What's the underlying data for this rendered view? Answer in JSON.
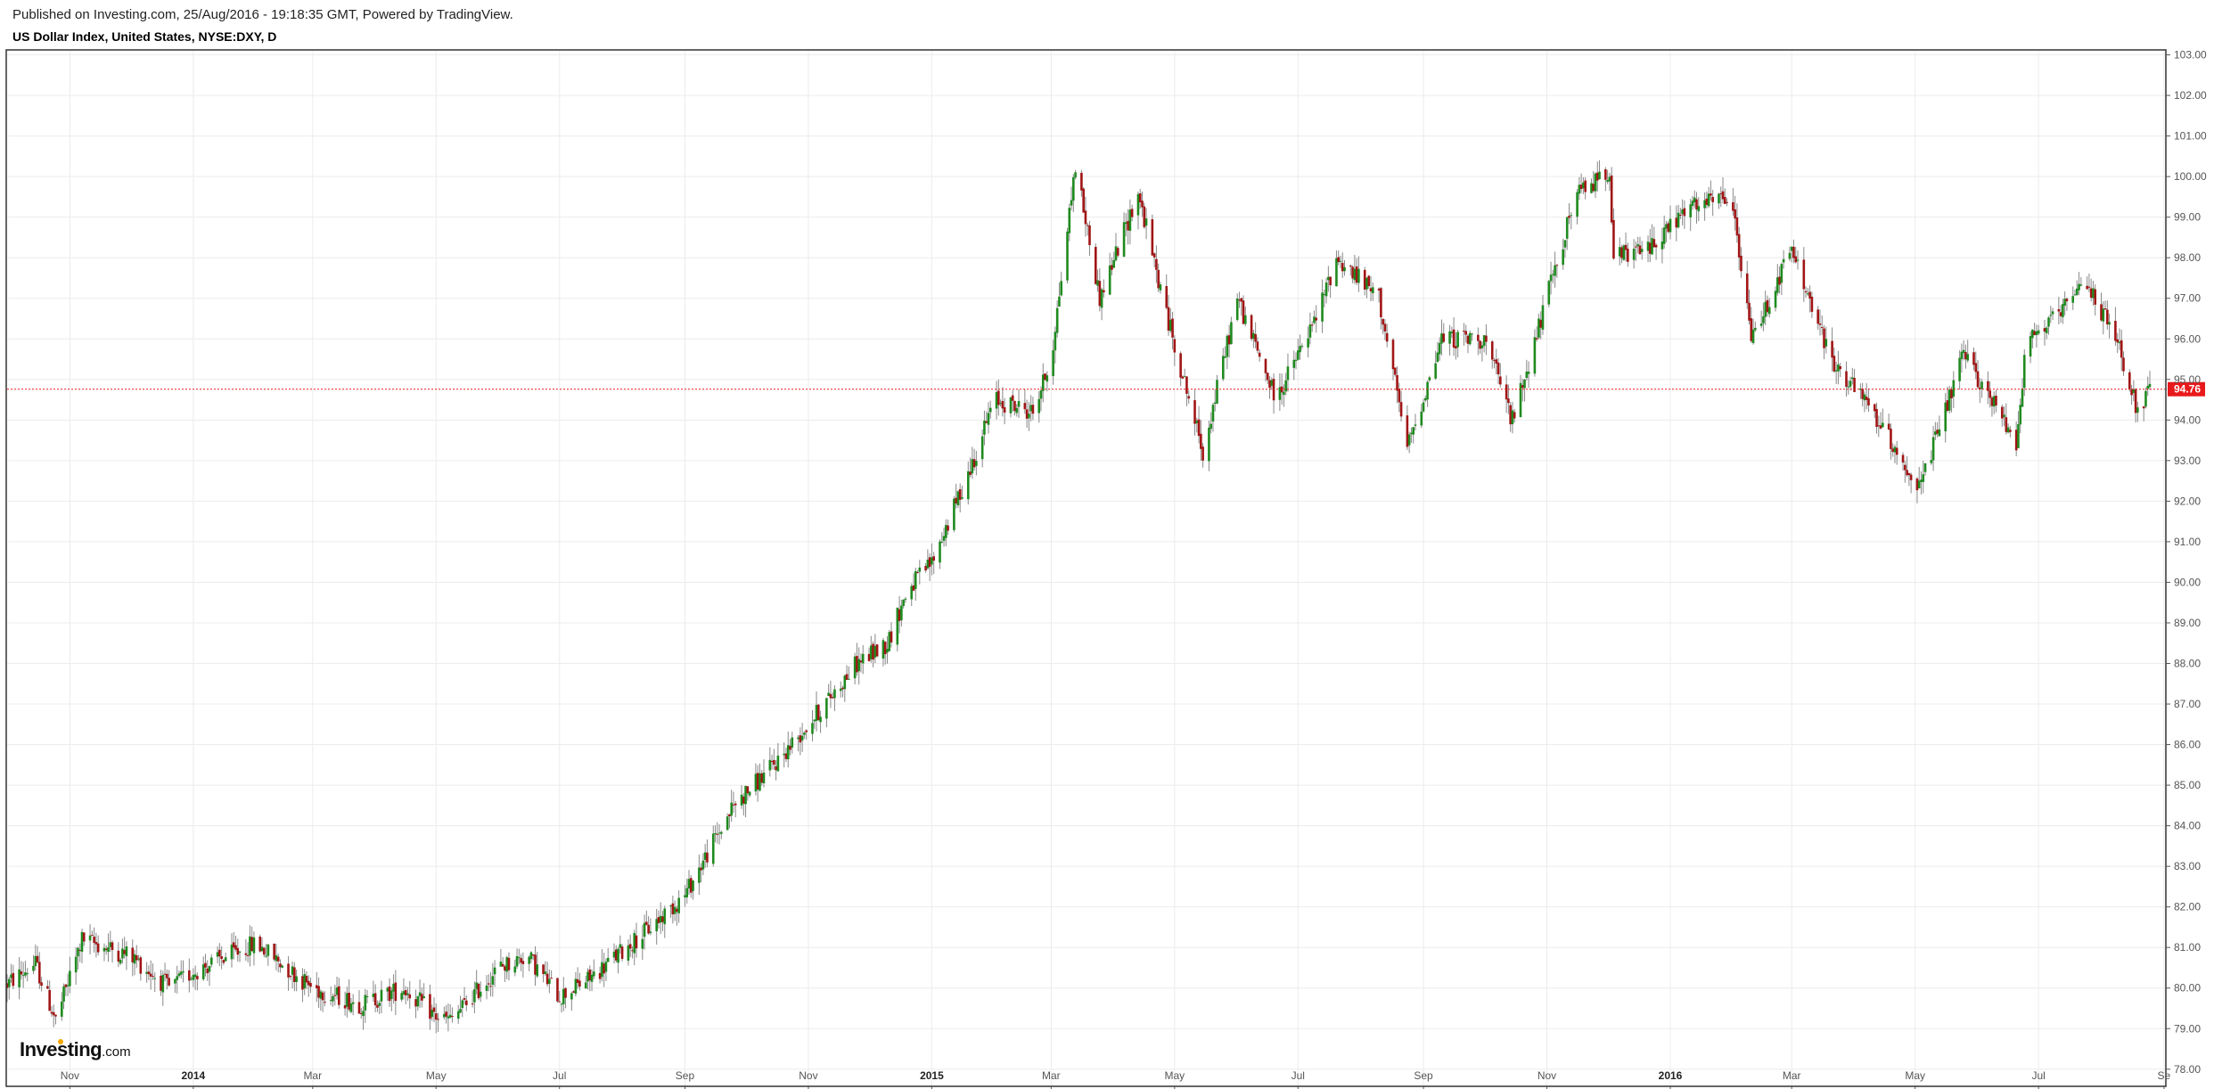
{
  "header": {
    "published": "Published on Investing.com, 25/Aug/2016 - 19:18:35 GMT, Powered by TradingView.",
    "title": "US Dollar Index, United States, NYSE:DXY, D"
  },
  "logo": {
    "brand": "Investing",
    "suffix": ".com"
  },
  "colors": {
    "up": "#1f8a1f",
    "down": "#a11515",
    "wick": "#888888",
    "grid": "#ececec",
    "frame": "#333333",
    "last_price": "#e8191c"
  },
  "chart_data": {
    "type": "candlestick",
    "title": "US Dollar Index, United States, NYSE:DXY, D",
    "ylim": [
      77.6,
      103.1
    ],
    "y_ticks": [
      "78.00",
      "79.00",
      "80.00",
      "81.00",
      "82.00",
      "83.00",
      "84.00",
      "85.00",
      "86.00",
      "87.00",
      "88.00",
      "89.00",
      "90.00",
      "91.00",
      "92.00",
      "93.00",
      "94.00",
      "95.00",
      "96.00",
      "97.00",
      "98.00",
      "99.00",
      "100.00",
      "101.00",
      "102.00",
      "103.00"
    ],
    "x_ticks": [
      {
        "label": "Nov",
        "bold": false
      },
      {
        "label": "2014",
        "bold": true
      },
      {
        "label": "Mar",
        "bold": false
      },
      {
        "label": "May",
        "bold": false
      },
      {
        "label": "Jul",
        "bold": false
      },
      {
        "label": "Sep",
        "bold": false
      },
      {
        "label": "Nov",
        "bold": false
      },
      {
        "label": "2015",
        "bold": true
      },
      {
        "label": "Mar",
        "bold": false
      },
      {
        "label": "May",
        "bold": false
      },
      {
        "label": "Jul",
        "bold": false
      },
      {
        "label": "Sep",
        "bold": false
      },
      {
        "label": "Nov",
        "bold": false
      },
      {
        "label": "2016",
        "bold": true
      },
      {
        "label": "Mar",
        "bold": false
      },
      {
        "label": "May",
        "bold": false
      },
      {
        "label": "Jul",
        "bold": false
      },
      {
        "label": "Se",
        "bold": false
      }
    ],
    "last_price": 94.76,
    "last_price_label": "94.76",
    "grid": true,
    "path_anchors": [
      {
        "x": "2013-10-01",
        "y": 80.1
      },
      {
        "x": "2013-10-15",
        "y": 80.6
      },
      {
        "x": "2013-10-25",
        "y": 79.2
      },
      {
        "x": "2013-11-07",
        "y": 81.2
      },
      {
        "x": "2013-12-01",
        "y": 80.8
      },
      {
        "x": "2013-12-20",
        "y": 80.0
      },
      {
        "x": "2014-01-01",
        "y": 80.4
      },
      {
        "x": "2014-02-01",
        "y": 81.1
      },
      {
        "x": "2014-03-01",
        "y": 80.0
      },
      {
        "x": "2014-03-25",
        "y": 79.6
      },
      {
        "x": "2014-04-15",
        "y": 80.0
      },
      {
        "x": "2014-05-01",
        "y": 79.3
      },
      {
        "x": "2014-05-08",
        "y": 79.2
      },
      {
        "x": "2014-06-01",
        "y": 80.5
      },
      {
        "x": "2014-06-15",
        "y": 80.8
      },
      {
        "x": "2014-07-01",
        "y": 79.8
      },
      {
        "x": "2014-07-15",
        "y": 80.2
      },
      {
        "x": "2014-08-15",
        "y": 81.5
      },
      {
        "x": "2014-09-01",
        "y": 82.3
      },
      {
        "x": "2014-09-25",
        "y": 84.5
      },
      {
        "x": "2014-10-15",
        "y": 85.5
      },
      {
        "x": "2014-11-01",
        "y": 86.5
      },
      {
        "x": "2014-11-25",
        "y": 88.0
      },
      {
        "x": "2014-12-10",
        "y": 88.5
      },
      {
        "x": "2014-12-20",
        "y": 89.8
      },
      {
        "x": "2015-01-01",
        "y": 90.5
      },
      {
        "x": "2015-01-20",
        "y": 92.8
      },
      {
        "x": "2015-02-01",
        "y": 94.5
      },
      {
        "x": "2015-02-20",
        "y": 94.2
      },
      {
        "x": "2015-03-01",
        "y": 95.5
      },
      {
        "x": "2015-03-13",
        "y": 100.3
      },
      {
        "x": "2015-03-25",
        "y": 97.0
      },
      {
        "x": "2015-04-13",
        "y": 99.6
      },
      {
        "x": "2015-04-25",
        "y": 97.0
      },
      {
        "x": "2015-05-15",
        "y": 93.2
      },
      {
        "x": "2015-06-01",
        "y": 97.0
      },
      {
        "x": "2015-06-20",
        "y": 94.5
      },
      {
        "x": "2015-07-10",
        "y": 96.5
      },
      {
        "x": "2015-07-20",
        "y": 98.0
      },
      {
        "x": "2015-08-10",
        "y": 97.0
      },
      {
        "x": "2015-08-24",
        "y": 93.3
      },
      {
        "x": "2015-09-10",
        "y": 96.0
      },
      {
        "x": "2015-10-01",
        "y": 96.0
      },
      {
        "x": "2015-10-15",
        "y": 94.0
      },
      {
        "x": "2015-11-01",
        "y": 97.0
      },
      {
        "x": "2015-11-15",
        "y": 99.5
      },
      {
        "x": "2015-12-02",
        "y": 100.2
      },
      {
        "x": "2015-12-04",
        "y": 98.0
      },
      {
        "x": "2015-12-20",
        "y": 98.2
      },
      {
        "x": "2016-01-10",
        "y": 99.2
      },
      {
        "x": "2016-01-31",
        "y": 99.5
      },
      {
        "x": "2016-02-10",
        "y": 96.0
      },
      {
        "x": "2016-03-01",
        "y": 98.2
      },
      {
        "x": "2016-03-20",
        "y": 95.5
      },
      {
        "x": "2016-04-10",
        "y": 94.2
      },
      {
        "x": "2016-05-03",
        "y": 92.3
      },
      {
        "x": "2016-05-25",
        "y": 95.6
      },
      {
        "x": "2016-06-20",
        "y": 93.5
      },
      {
        "x": "2016-06-25",
        "y": 96.0
      },
      {
        "x": "2016-07-10",
        "y": 96.5
      },
      {
        "x": "2016-07-25",
        "y": 97.4
      },
      {
        "x": "2016-08-10",
        "y": 95.8
      },
      {
        "x": "2016-08-19",
        "y": 94.2
      },
      {
        "x": "2016-08-25",
        "y": 94.76
      }
    ]
  }
}
